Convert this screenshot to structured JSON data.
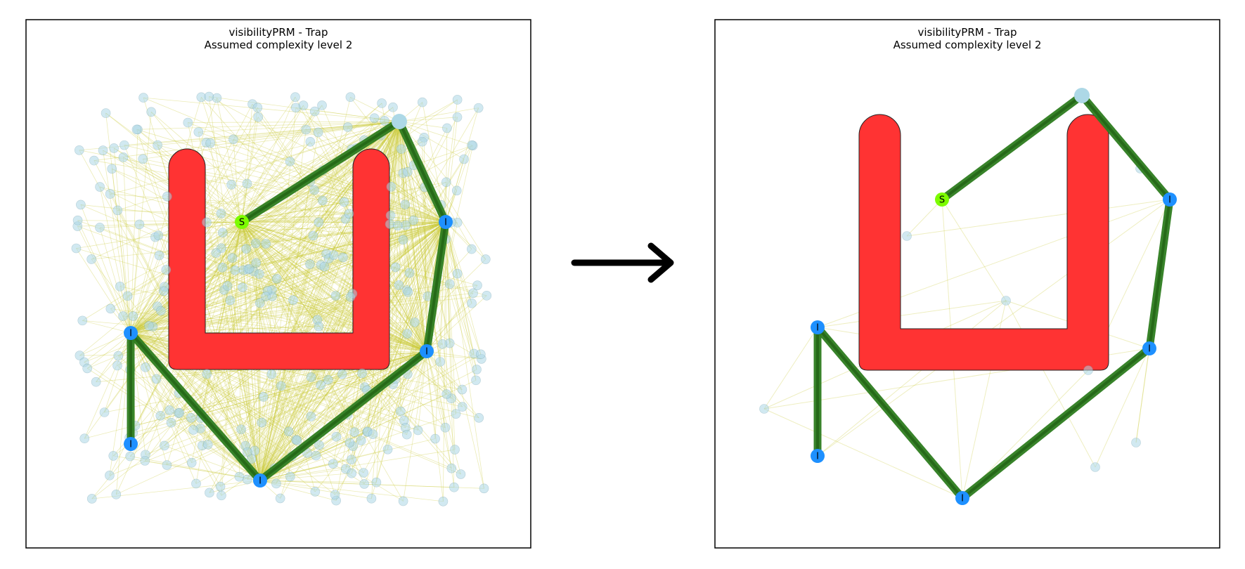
{
  "colors": {
    "obstacle": "#ff3333",
    "obstacle_edge": "#222222",
    "path_outer": "#2e7d1f",
    "path_inner": "#1f5f12",
    "roadmap_edge": "#c8c832",
    "sample_node": "#add8e6",
    "interface_node": "#1e90ff",
    "start_node": "#7cfc00",
    "arrow": "#000000"
  },
  "arrow": {
    "name": "arrow-right-icon"
  },
  "panels": [
    {
      "id": "left",
      "title_line1": "visibilityPRM - Trap",
      "title_line2": "Assumed complexity level 2",
      "start_label": "S",
      "interface_label": "I",
      "dense_samples": true
    },
    {
      "id": "right",
      "title_line1": "visibilityPRM - Trap",
      "title_line2": "Assumed complexity level 2",
      "start_label": "S",
      "interface_label": "I",
      "dense_samples": false
    }
  ]
}
